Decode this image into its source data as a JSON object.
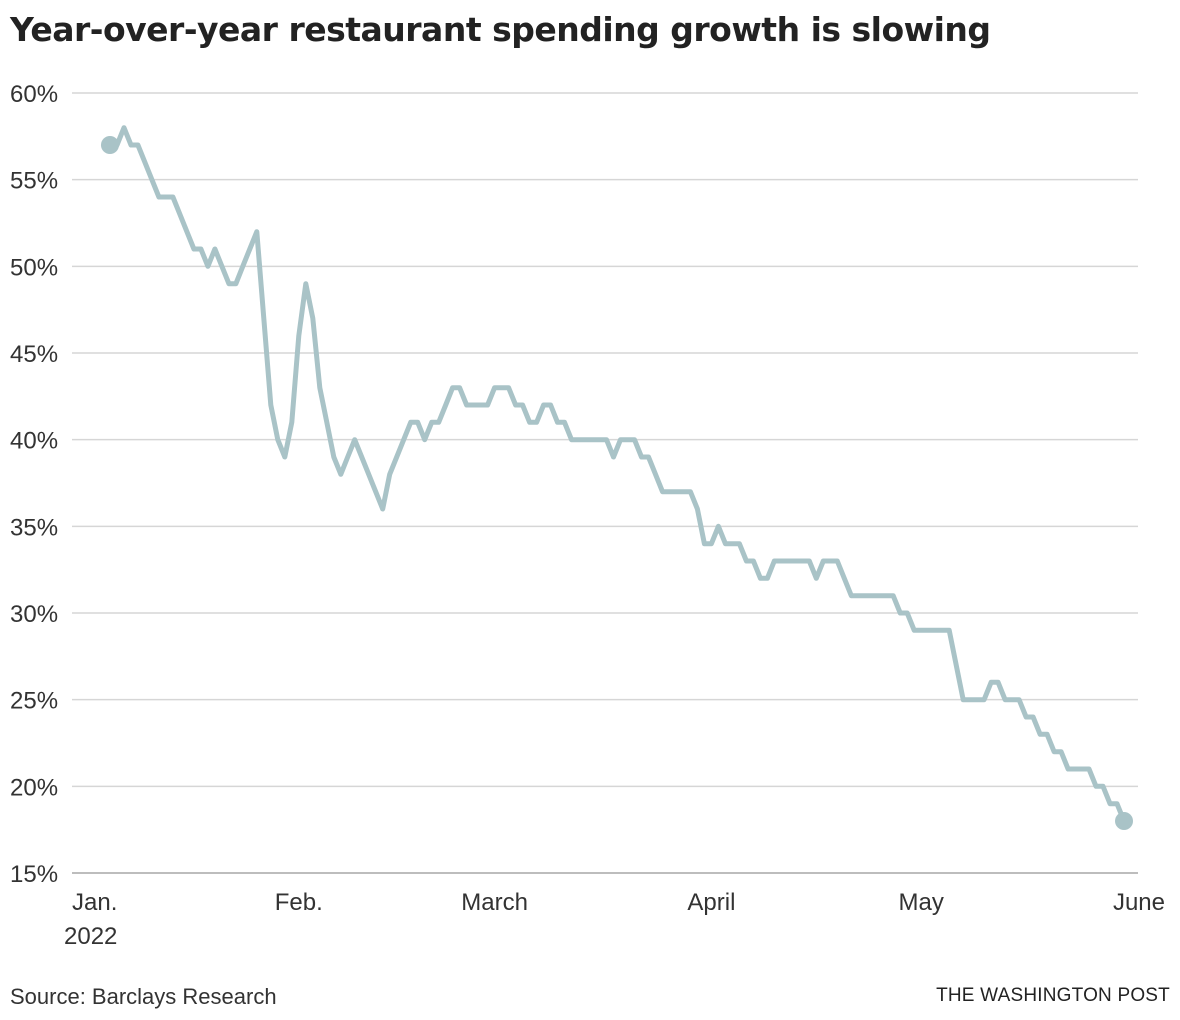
{
  "header": {
    "title": "Year-over-year restaurant spending growth is slowing"
  },
  "footer": {
    "source": "Source: Barclays Research",
    "credit": "THE WASHINGTON POST"
  },
  "chart_data": {
    "type": "line",
    "title": "Year-over-year restaurant spending growth is slowing",
    "xlabel": "",
    "ylabel": "",
    "ylim": [
      15,
      60
    ],
    "xlim": [
      "2022-01-01",
      "2022-06-01"
    ],
    "grid": true,
    "line_color": "#a9c3c7",
    "gridline_color": "#d6d6d6",
    "y_ticks": [
      {
        "value": 15,
        "label": "15%"
      },
      {
        "value": 20,
        "label": "20%"
      },
      {
        "value": 25,
        "label": "25%"
      },
      {
        "value": 30,
        "label": "30%"
      },
      {
        "value": 35,
        "label": "35%"
      },
      {
        "value": 40,
        "label": "40%"
      },
      {
        "value": 45,
        "label": "45%"
      },
      {
        "value": 50,
        "label": "50%"
      },
      {
        "value": 55,
        "label": "55%"
      },
      {
        "value": 60,
        "label": "60%"
      }
    ],
    "x_ticks": [
      {
        "date": "2022-01-01",
        "label": "Jan.",
        "sublabel": "2022"
      },
      {
        "date": "2022-02-01",
        "label": "Feb."
      },
      {
        "date": "2022-03-01",
        "label": "March"
      },
      {
        "date": "2022-04-01",
        "label": "April"
      },
      {
        "date": "2022-05-01",
        "label": "May"
      },
      {
        "date": "2022-06-01",
        "label": "June"
      }
    ],
    "series": [
      {
        "values": [
          [
            "2022-01-05",
            57
          ],
          [
            "2022-01-06",
            57
          ],
          [
            "2022-01-07",
            58
          ],
          [
            "2022-01-08",
            57
          ],
          [
            "2022-01-09",
            57
          ],
          [
            "2022-01-10",
            56
          ],
          [
            "2022-01-11",
            55
          ],
          [
            "2022-01-12",
            54
          ],
          [
            "2022-01-14",
            54
          ],
          [
            "2022-01-15",
            53
          ],
          [
            "2022-01-16",
            52
          ],
          [
            "2022-01-17",
            51
          ],
          [
            "2022-01-18",
            51
          ],
          [
            "2022-01-19",
            50
          ],
          [
            "2022-01-20",
            51
          ],
          [
            "2022-01-21",
            50
          ],
          [
            "2022-01-22",
            49
          ],
          [
            "2022-01-23",
            49
          ],
          [
            "2022-01-24",
            50
          ],
          [
            "2022-01-25",
            51
          ],
          [
            "2022-01-26",
            52
          ],
          [
            "2022-01-27",
            47
          ],
          [
            "2022-01-28",
            42
          ],
          [
            "2022-01-29",
            40
          ],
          [
            "2022-01-30",
            39
          ],
          [
            "2022-01-31",
            41
          ],
          [
            "2022-02-01",
            46
          ],
          [
            "2022-02-02",
            49
          ],
          [
            "2022-02-03",
            47
          ],
          [
            "2022-02-04",
            43
          ],
          [
            "2022-02-05",
            41
          ],
          [
            "2022-02-06",
            39
          ],
          [
            "2022-02-07",
            38
          ],
          [
            "2022-02-08",
            39
          ],
          [
            "2022-02-09",
            40
          ],
          [
            "2022-02-10",
            39
          ],
          [
            "2022-02-11",
            38
          ],
          [
            "2022-02-12",
            37
          ],
          [
            "2022-02-13",
            36
          ],
          [
            "2022-02-14",
            38
          ],
          [
            "2022-02-15",
            39
          ],
          [
            "2022-02-16",
            40
          ],
          [
            "2022-02-17",
            41
          ],
          [
            "2022-02-18",
            41
          ],
          [
            "2022-02-19",
            40
          ],
          [
            "2022-02-20",
            41
          ],
          [
            "2022-02-21",
            41
          ],
          [
            "2022-02-22",
            42
          ],
          [
            "2022-02-23",
            43
          ],
          [
            "2022-02-24",
            43
          ],
          [
            "2022-02-25",
            42
          ],
          [
            "2022-02-28",
            42
          ],
          [
            "2022-03-01",
            43
          ],
          [
            "2022-03-03",
            43
          ],
          [
            "2022-03-04",
            42
          ],
          [
            "2022-03-05",
            42
          ],
          [
            "2022-03-06",
            41
          ],
          [
            "2022-03-07",
            41
          ],
          [
            "2022-03-08",
            42
          ],
          [
            "2022-03-09",
            42
          ],
          [
            "2022-03-10",
            41
          ],
          [
            "2022-03-11",
            41
          ],
          [
            "2022-03-12",
            40
          ],
          [
            "2022-03-17",
            40
          ],
          [
            "2022-03-18",
            39
          ],
          [
            "2022-03-19",
            40
          ],
          [
            "2022-03-21",
            40
          ],
          [
            "2022-03-22",
            39
          ],
          [
            "2022-03-23",
            39
          ],
          [
            "2022-03-24",
            38
          ],
          [
            "2022-03-25",
            37
          ],
          [
            "2022-03-29",
            37
          ],
          [
            "2022-03-30",
            36
          ],
          [
            "2022-03-31",
            34
          ],
          [
            "2022-04-01",
            34
          ],
          [
            "2022-04-02",
            35
          ],
          [
            "2022-04-03",
            34
          ],
          [
            "2022-04-05",
            34
          ],
          [
            "2022-04-06",
            33
          ],
          [
            "2022-04-07",
            33
          ],
          [
            "2022-04-08",
            32
          ],
          [
            "2022-04-09",
            32
          ],
          [
            "2022-04-10",
            33
          ],
          [
            "2022-04-15",
            33
          ],
          [
            "2022-04-16",
            32
          ],
          [
            "2022-04-17",
            33
          ],
          [
            "2022-04-19",
            33
          ],
          [
            "2022-04-21",
            31
          ],
          [
            "2022-04-27",
            31
          ],
          [
            "2022-04-28",
            30
          ],
          [
            "2022-04-29",
            30
          ],
          [
            "2022-04-30",
            29
          ],
          [
            "2022-05-05",
            29
          ],
          [
            "2022-05-07",
            25
          ],
          [
            "2022-05-10",
            25
          ],
          [
            "2022-05-11",
            26
          ],
          [
            "2022-05-12",
            26
          ],
          [
            "2022-05-13",
            25
          ],
          [
            "2022-05-15",
            25
          ],
          [
            "2022-05-16",
            24
          ],
          [
            "2022-05-17",
            24
          ],
          [
            "2022-05-18",
            23
          ],
          [
            "2022-05-19",
            23
          ],
          [
            "2022-05-20",
            22
          ],
          [
            "2022-05-21",
            22
          ],
          [
            "2022-05-22",
            21
          ],
          [
            "2022-05-25",
            21
          ],
          [
            "2022-05-26",
            20
          ],
          [
            "2022-05-27",
            20
          ],
          [
            "2022-05-28",
            19
          ],
          [
            "2022-05-29",
            19
          ],
          [
            "2022-05-30",
            18
          ]
        ]
      }
    ],
    "endpoint_markers": true
  }
}
